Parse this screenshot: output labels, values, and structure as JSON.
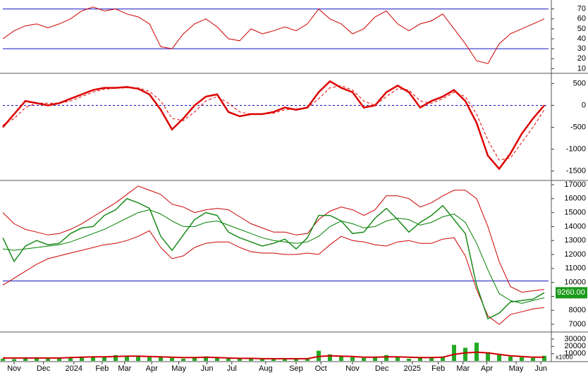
{
  "chart_data": [
    {
      "type": "line",
      "ylim": [
        6,
        79
      ],
      "yticks": [
        10,
        20,
        30,
        40,
        50,
        60,
        70
      ],
      "levels": [
        30,
        70
      ],
      "level_color": "#1010c0",
      "series": [
        {
          "color": "#cc0000",
          "width": 1,
          "values": [
            40,
            48,
            53,
            55,
            51,
            55,
            60,
            68,
            72,
            68,
            70,
            65,
            62,
            55,
            32,
            30,
            45,
            55,
            60,
            52,
            40,
            38,
            50,
            45,
            48,
            52,
            48,
            55,
            70,
            60,
            55,
            45,
            50,
            62,
            68,
            55,
            48,
            55,
            58,
            65,
            50,
            35,
            18,
            15,
            35,
            45,
            50,
            55,
            60
          ]
        }
      ]
    },
    {
      "type": "line",
      "ylim": [
        -1700,
        700
      ],
      "yticks": [
        500,
        0,
        -500,
        -1000,
        -1500
      ],
      "levels": [
        0
      ],
      "level_color": "#1010c0",
      "level_dashed": true,
      "series": [
        {
          "color": "#dd0000",
          "width": 2.5,
          "values": [
            -500,
            -200,
            100,
            50,
            0,
            50,
            150,
            250,
            350,
            400,
            400,
            420,
            380,
            250,
            -100,
            -550,
            -300,
            0,
            200,
            250,
            -150,
            -250,
            -200,
            -200,
            -150,
            -50,
            -100,
            -50,
            300,
            550,
            400,
            300,
            -50,
            0,
            300,
            450,
            300,
            -50,
            100,
            200,
            350,
            100,
            -400,
            -1150,
            -1450,
            -1100,
            -650,
            -300,
            0
          ]
        },
        {
          "color": "#dd0000",
          "width": 1,
          "dashed": true,
          "values": [
            -450,
            -300,
            -50,
            50,
            50,
            50,
            100,
            200,
            300,
            370,
            390,
            400,
            400,
            320,
            100,
            -300,
            -350,
            -150,
            100,
            200,
            50,
            -150,
            -200,
            -200,
            -180,
            -100,
            -80,
            -60,
            150,
            400,
            450,
            350,
            100,
            0,
            200,
            380,
            350,
            100,
            50,
            150,
            300,
            200,
            -200,
            -800,
            -1250,
            -1200,
            -850,
            -500,
            -100
          ]
        }
      ]
    },
    {
      "type": "line",
      "ylim": [
        6500,
        17200
      ],
      "yticks": [
        7000,
        8000,
        9000,
        10000,
        11000,
        12000,
        13000,
        14000,
        15000,
        16000,
        17000
      ],
      "levels": [
        10100
      ],
      "level_color": "#1010c0",
      "last_price": {
        "value": 9260,
        "label": "9260.00",
        "color": "#1a9a1a"
      },
      "series": [
        {
          "color": "#cc0000",
          "width": 1,
          "values": [
            15000,
            14200,
            13800,
            13600,
            13400,
            13500,
            13800,
            14200,
            14700,
            15200,
            15700,
            16300,
            16900,
            16600,
            16300,
            15600,
            15400,
            15000,
            15200,
            15300,
            15200,
            14700,
            14200,
            13900,
            13600,
            13600,
            13400,
            13500,
            14500,
            15100,
            15400,
            15200,
            14800,
            15200,
            16200,
            16200,
            16000,
            15400,
            15700,
            16200,
            16600,
            16600,
            16000,
            14000,
            11500,
            9700,
            9300,
            9400,
            9500
          ]
        },
        {
          "color": "#008000",
          "width": 1,
          "values": [
            12400,
            12300,
            12400,
            12500,
            12600,
            12700,
            12900,
            13200,
            13500,
            13800,
            14200,
            14600,
            15000,
            15200,
            14900,
            14400,
            14000,
            14000,
            14300,
            14400,
            14100,
            13800,
            13500,
            13200,
            13000,
            12900,
            12800,
            12900,
            13300,
            14000,
            14400,
            14200,
            13900,
            14000,
            14400,
            14600,
            14500,
            14100,
            14300,
            14700,
            14900,
            14300,
            12800,
            10900,
            9200,
            8700,
            8500,
            8700,
            8900
          ]
        },
        {
          "color": "#cc0000",
          "width": 1,
          "values": [
            9800,
            10300,
            10800,
            11300,
            11700,
            11900,
            12100,
            12300,
            12500,
            12700,
            12800,
            13000,
            13300,
            13700,
            12500,
            11700,
            11900,
            12500,
            12800,
            12900,
            12900,
            12500,
            12200,
            12100,
            12100,
            12000,
            12000,
            12100,
            12000,
            12700,
            13300,
            13000,
            12900,
            12700,
            12600,
            12900,
            13000,
            12800,
            12800,
            13100,
            13200,
            11900,
            9500,
            7600,
            7000,
            7700,
            7900,
            8100,
            8200
          ]
        },
        {
          "color": "#1a8a1a",
          "width": 1.5,
          "values": [
            13200,
            11500,
            12600,
            13000,
            12700,
            12800,
            13500,
            13900,
            14000,
            14800,
            15200,
            16000,
            15700,
            15300,
            13300,
            12300,
            13400,
            14500,
            15000,
            14800,
            13600,
            13200,
            12900,
            12600,
            12800,
            13100,
            12400,
            13200,
            14800,
            14800,
            14400,
            13500,
            13600,
            14600,
            15300,
            14500,
            13600,
            14300,
            14800,
            15500,
            14500,
            13500,
            9800,
            7400,
            7800,
            8600,
            8700,
            8800,
            9260
          ]
        }
      ]
    },
    {
      "type": "bar",
      "ylim": [
        0,
        37700
      ],
      "yticks": [
        10000,
        20000,
        30000
      ],
      "unit_label": "x1000",
      "xlim": [
        -0.25,
        48.625
      ],
      "xticks": [
        {
          "value": 1.0,
          "label": "Nov"
        },
        {
          "value": 3.6,
          "label": "Dec"
        },
        {
          "value": 6.3,
          "label": "2024"
        },
        {
          "value": 8.8,
          "label": "Feb"
        },
        {
          "value": 10.8,
          "label": "Mar"
        },
        {
          "value": 13.2,
          "label": "Apr"
        },
        {
          "value": 15.6,
          "label": "May"
        },
        {
          "value": 18.1,
          "label": "Jun"
        },
        {
          "value": 20.3,
          "label": "Jul"
        },
        {
          "value": 23.3,
          "label": "Aug"
        },
        {
          "value": 26.0,
          "label": "Sep"
        },
        {
          "value": 28.2,
          "label": "Oct"
        },
        {
          "value": 31.0,
          "label": "Nov"
        },
        {
          "value": 33.6,
          "label": "Dec"
        },
        {
          "value": 36.3,
          "label": "2025"
        },
        {
          "value": 38.6,
          "label": "Feb"
        },
        {
          "value": 40.8,
          "label": "Mar"
        },
        {
          "value": 42.9,
          "label": "Apr"
        },
        {
          "value": 45.5,
          "label": "May"
        },
        {
          "value": 47.7,
          "label": "Jun"
        }
      ],
      "series": [
        {
          "kind": "bar",
          "color": "#22aa22",
          "values": [
            3000,
            2500,
            4000,
            5000,
            3000,
            4000,
            5000,
            6000,
            6000,
            5000,
            8000,
            7000,
            6000,
            5000,
            6000,
            4000,
            3000,
            5000,
            6000,
            4000,
            3000,
            3000,
            3000,
            2500,
            3000,
            3000,
            3000,
            3000,
            14000,
            9000,
            6000,
            5000,
            4000,
            5000,
            8000,
            5000,
            3000,
            4000,
            5000,
            6000,
            22000,
            18000,
            25000,
            12000,
            8000,
            6000,
            5000,
            4000,
            7000
          ]
        },
        {
          "kind": "line",
          "color": "#cc0000",
          "width": 2,
          "values": [
            4000,
            4000,
            4000,
            4000,
            4000,
            4000,
            4500,
            5000,
            5500,
            5500,
            6000,
            6500,
            6500,
            6000,
            5500,
            5000,
            4500,
            4500,
            5000,
            4500,
            4000,
            3500,
            3500,
            3000,
            3000,
            3000,
            3000,
            3000,
            6000,
            7000,
            6500,
            6000,
            5000,
            5000,
            5500,
            5500,
            5000,
            4500,
            4500,
            5000,
            9000,
            11000,
            12000,
            11000,
            9000,
            7000,
            6000,
            5000,
            5000
          ]
        }
      ]
    }
  ]
}
